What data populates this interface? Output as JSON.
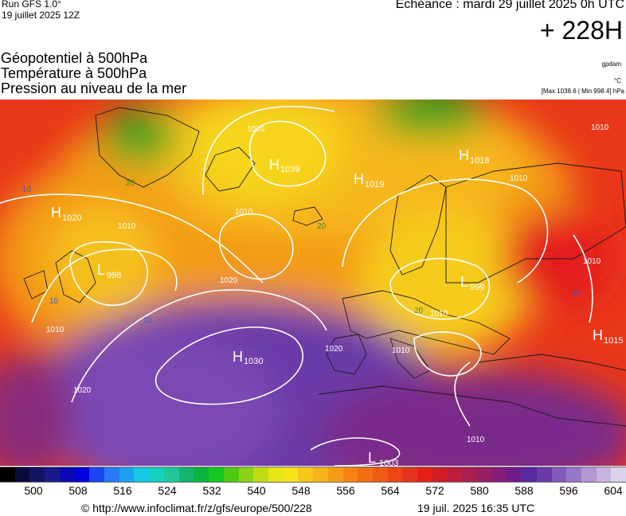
{
  "header": {
    "run_title": "Run GFS 1.0°",
    "run_date": "19 juillet 2025 12Z",
    "echeance": "Echéance : mardi 29 juillet 2025 0h UTC",
    "lead_time": "+ 228H"
  },
  "parameters": {
    "geopotential": "Géopotentiel à 500hPa",
    "temperature": "Température à 500hPa",
    "pressure": "Pression au niveau de la mer"
  },
  "units": {
    "geopotential": "gpdam",
    "temperature": "°C",
    "pressure_range": "[Max 1038.6 | Min 998.4] hPa"
  },
  "colors": {
    "low": "#6b3aa8",
    "mid": "#e8261a",
    "high": "#f6e31a",
    "trough": "#22a51a"
  },
  "centers": [
    {
      "type": "H",
      "value": "1039"
    },
    {
      "type": "H",
      "value": "1018"
    },
    {
      "type": "H",
      "value": "1019"
    },
    {
      "type": "H",
      "value": "1020"
    },
    {
      "type": "L",
      "value": "998"
    },
    {
      "type": "L",
      "value": "999"
    },
    {
      "type": "H",
      "value": "1030"
    },
    {
      "type": "H",
      "value": "1015"
    },
    {
      "type": "L",
      "value": "1003"
    }
  ],
  "isobar_labels": [
    "1010",
    "1010",
    "1010",
    "1010",
    "1010",
    "1020",
    "1020",
    "1020",
    "1010",
    "1010",
    "1010",
    "1010",
    "1010"
  ],
  "temp_labels": [
    "10",
    "20",
    "10",
    "10",
    "20",
    "20",
    "10"
  ],
  "scale": {
    "tick_labels": [
      "500",
      "508",
      "516",
      "524",
      "532",
      "540",
      "548",
      "556",
      "564",
      "572",
      "580",
      "588",
      "596",
      "604"
    ],
    "colors": [
      "#000000",
      "#0a0a38",
      "#141464",
      "#1a1a8c",
      "#0a0ab4",
      "#0000dc",
      "#1a46f0",
      "#2a78f5",
      "#1ea0f0",
      "#14c8e6",
      "#14d2be",
      "#1ec896",
      "#14b46e",
      "#0ab43c",
      "#14c81e",
      "#50c814",
      "#8cd214",
      "#bedc14",
      "#e6e614",
      "#f6e31a",
      "#f6c81a",
      "#f6b41a",
      "#f69c14",
      "#f68214",
      "#f06e14",
      "#f05a14",
      "#eb4614",
      "#e6321a",
      "#e61e1a",
      "#d21e28",
      "#be1e3c",
      "#aa1e50",
      "#961e64",
      "#821e78",
      "#6e1e8c",
      "#5a28a0",
      "#6b3aa8",
      "#825aba",
      "#9678c8",
      "#b496d2",
      "#c8b4e0",
      "#dcd2ec"
    ]
  },
  "footer": {
    "url": "© http://www.infoclimat.fr/z/gfs/europe/500/228",
    "timestamp": "19 juil. 2025 16:35 UTC"
  }
}
